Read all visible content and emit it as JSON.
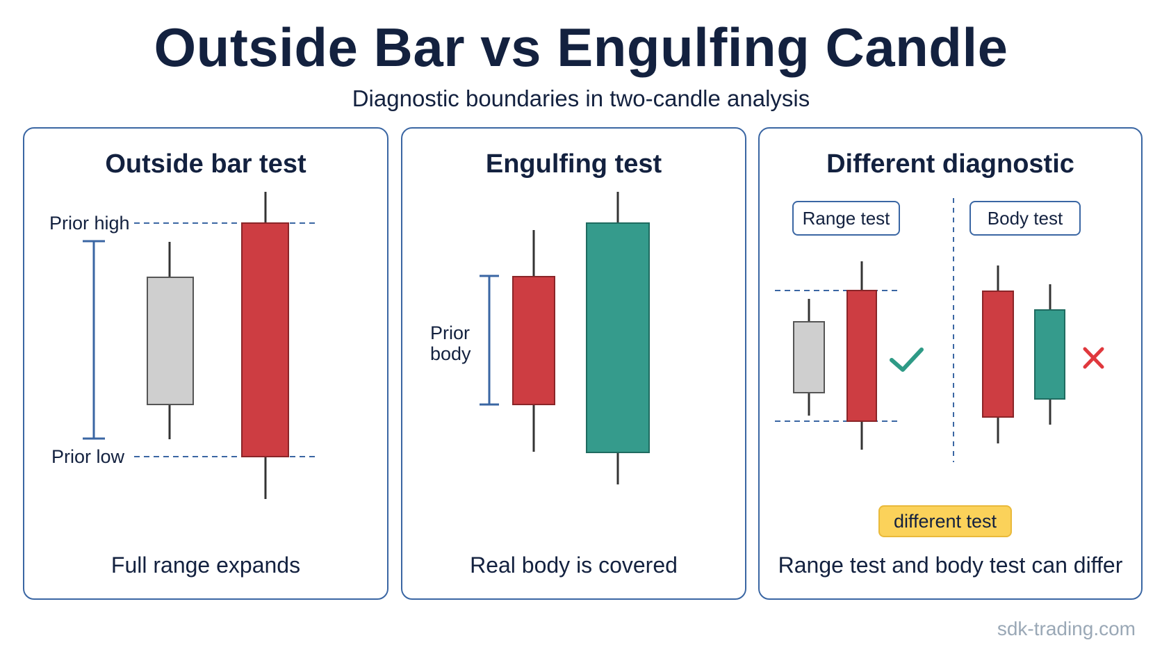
{
  "header": {
    "title": "Outside Bar vs Engulfing Candle",
    "subtitle": "Diagnostic boundaries in two-candle analysis"
  },
  "panels": {
    "outside_bar": {
      "title": "Outside bar test",
      "label_high": "Prior high",
      "label_low": "Prior low",
      "caption": "Full range expands"
    },
    "engulfing": {
      "title": "Engulfing test",
      "label_body_line1": "Prior",
      "label_body_line2": "body",
      "caption": "Real body is covered"
    },
    "different": {
      "title": "Different diagnostic",
      "range_chip": "Range test",
      "body_chip": "Body test",
      "badge": "different test",
      "caption": "Range test and body test can differ",
      "range_result_icon": "check-icon",
      "body_result_icon": "cross-icon"
    }
  },
  "colors": {
    "bearish": "#cd3d42",
    "bullish": "#359b8c",
    "neutral": "#cfcfcf",
    "accent": "#3a66a3",
    "check": "#2e9a86",
    "cross": "#e0383d",
    "badge": "#fbd25a"
  },
  "footer": {
    "watermark": "sdk-trading.com"
  }
}
